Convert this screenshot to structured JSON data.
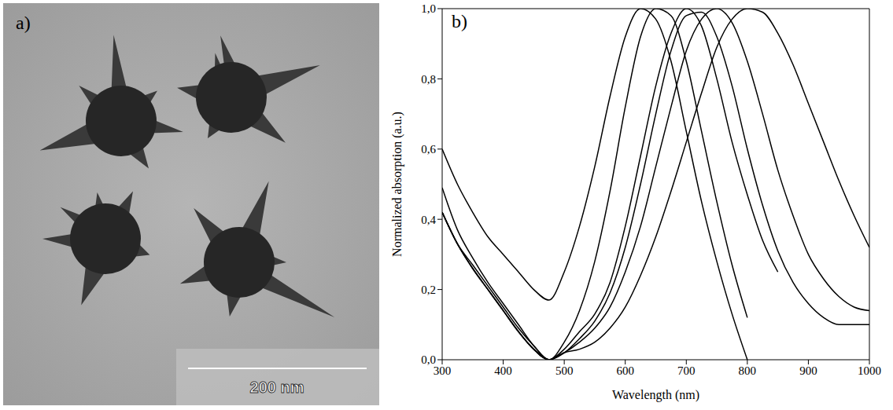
{
  "image_panel": {
    "label": "a)",
    "scale_bar": "200 nm"
  },
  "chart_data": {
    "type": "line",
    "label": "b)",
    "x_label": "Wavelength (nm)",
    "y_label": "Normalized absorption (a.u.)",
    "x": [
      300,
      325,
      350,
      375,
      400,
      425,
      450,
      475,
      500,
      525,
      550,
      575,
      600,
      625,
      650,
      675,
      700,
      725,
      750,
      775,
      800,
      825,
      850,
      875,
      900,
      925,
      950,
      975,
      1000
    ],
    "series": [
      {
        "color": "#000000",
        "values": [
          0.6,
          0.5,
          0.42,
          0.35,
          0.3,
          0.25,
          0.2,
          0.17,
          0.25,
          0.38,
          0.55,
          0.75,
          0.92,
          1.0,
          0.97,
          0.85,
          0.65,
          0.45,
          0.28,
          0.13,
          0.0,
          null,
          null,
          null,
          null,
          null,
          null,
          null,
          null
        ]
      },
      {
        "color": "#000000",
        "values": [
          0.49,
          0.37,
          0.29,
          0.22,
          0.16,
          0.1,
          0.04,
          0.0,
          0.05,
          0.14,
          0.28,
          0.48,
          0.72,
          0.92,
          1.0,
          0.98,
          0.85,
          0.65,
          0.45,
          0.27,
          0.12,
          null,
          null,
          null,
          null,
          null,
          null,
          null,
          null
        ]
      },
      {
        "color": "#000000",
        "values": [
          0.42,
          0.33,
          0.27,
          0.21,
          0.15,
          0.09,
          0.04,
          0.0,
          0.03,
          0.08,
          0.13,
          0.22,
          0.38,
          0.58,
          0.78,
          0.93,
          1.0,
          0.95,
          0.8,
          0.62,
          0.47,
          0.34,
          0.25,
          null,
          null,
          null,
          null,
          null,
          null
        ]
      },
      {
        "color": "#000000",
        "values": [
          0.42,
          0.33,
          0.26,
          0.2,
          0.14,
          0.08,
          0.03,
          0.0,
          0.02,
          0.06,
          0.11,
          0.19,
          0.32,
          0.5,
          0.7,
          0.88,
          0.98,
          0.99,
          0.92,
          0.78,
          0.6,
          0.44,
          0.31,
          0.22,
          0.16,
          0.12,
          0.1,
          0.1,
          0.1
        ]
      },
      {
        "color": "#000000",
        "values": [
          0.42,
          0.33,
          0.26,
          0.2,
          0.14,
          0.08,
          0.03,
          0.0,
          0.02,
          0.05,
          0.09,
          0.15,
          0.25,
          0.38,
          0.55,
          0.72,
          0.88,
          0.97,
          1.0,
          0.96,
          0.85,
          0.7,
          0.54,
          0.41,
          0.3,
          0.23,
          0.18,
          0.15,
          0.14
        ]
      },
      {
        "color": "#000000",
        "values": [
          0.42,
          0.33,
          0.26,
          0.2,
          0.14,
          0.08,
          0.03,
          0.0,
          0.02,
          0.03,
          0.05,
          0.09,
          0.15,
          0.24,
          0.35,
          0.48,
          0.62,
          0.76,
          0.89,
          0.97,
          1.0,
          0.99,
          0.93,
          0.84,
          0.73,
          0.62,
          0.51,
          0.41,
          0.32
        ]
      }
    ],
    "xlim": [
      300,
      1000
    ],
    "xticks": [
      300,
      400,
      500,
      600,
      700,
      800,
      900,
      1000
    ],
    "ylim": [
      0,
      1.0
    ],
    "yticks": [
      {
        "value": 0,
        "label": "0,0"
      },
      {
        "value": 0.2,
        "label": "0,2"
      },
      {
        "value": 0.4,
        "label": "0,4"
      },
      {
        "value": 0.6,
        "label": "0,6"
      },
      {
        "value": 0.8,
        "label": "0,8"
      },
      {
        "value": 1.0,
        "label": "1,0"
      }
    ],
    "grid": false
  }
}
